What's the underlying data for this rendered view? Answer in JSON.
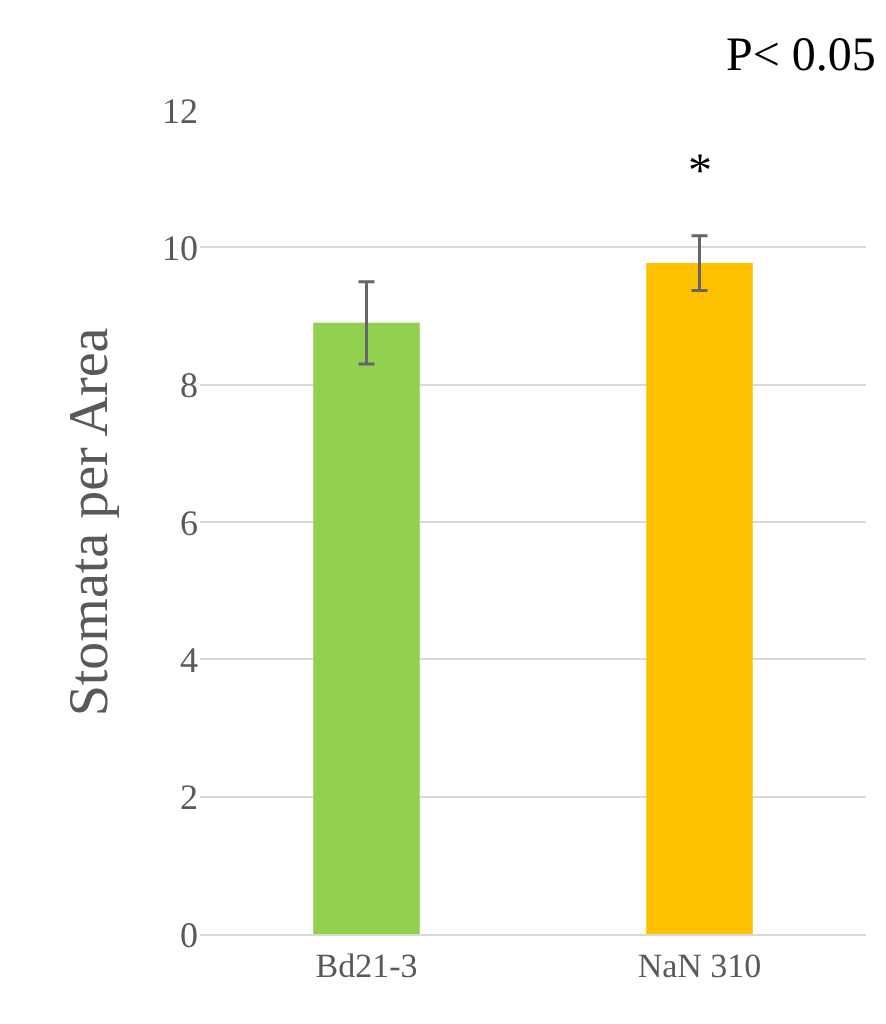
{
  "chart_data": {
    "type": "bar",
    "ylabel": "Stomata per Area",
    "categories": [
      "Bd21-3",
      "NaN 310"
    ],
    "values": [
      8.9,
      9.77
    ],
    "colors": [
      "#92d050",
      "#ffc000"
    ],
    "errors": [
      0.6,
      0.4
    ],
    "annotations": [
      "P< 0.05",
      "*"
    ],
    "ylim": [
      0,
      12
    ],
    "yticks": [
      0,
      2,
      4,
      6,
      8,
      10,
      12
    ],
    "grid": "y"
  }
}
